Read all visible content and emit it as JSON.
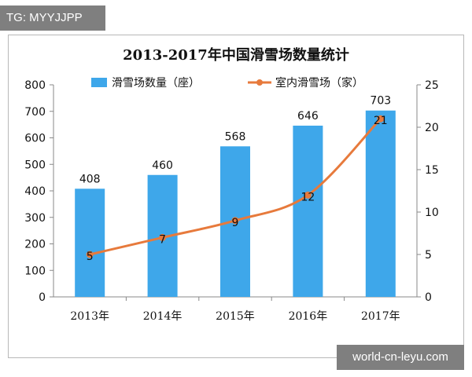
{
  "overlays": {
    "top_tag": "TG: MYYJJPP",
    "bottom_tag": "world-cn-leyu.com"
  },
  "chart_data": {
    "type": "bar",
    "title": "2013-2017年中国滑雪场数量统计",
    "categories": [
      "2013年",
      "2014年",
      "2015年",
      "2016年",
      "2017年"
    ],
    "series": [
      {
        "name": "滑雪场数量（座）",
        "type": "bar",
        "axis": "left",
        "color": "#3ea7ea",
        "values": [
          408,
          460,
          568,
          646,
          703
        ],
        "labels": [
          "408",
          "460",
          "568",
          "646",
          "703"
        ]
      },
      {
        "name": "室内滑雪场（家）",
        "type": "line",
        "axis": "right",
        "color": "#e77a3c",
        "values": [
          5,
          7,
          9,
          12,
          21
        ],
        "labels": [
          "5",
          "7",
          "9",
          "12",
          "21"
        ]
      }
    ],
    "y_left": {
      "ylim": [
        0,
        800
      ],
      "ticks": [
        "0",
        "100",
        "200",
        "300",
        "400",
        "500",
        "600",
        "700",
        "800"
      ]
    },
    "y_right": {
      "ylim": [
        0,
        25
      ],
      "ticks": [
        "0",
        "5",
        "10",
        "15",
        "20",
        "25"
      ]
    },
    "legend": "top",
    "grid": false
  }
}
